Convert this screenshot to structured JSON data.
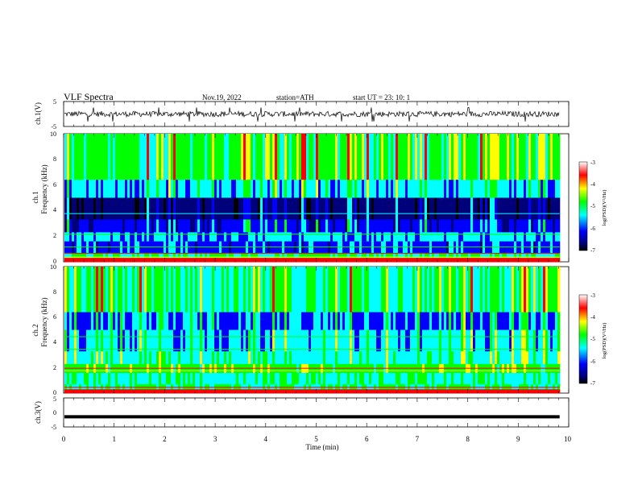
{
  "header": {
    "title": "VLF  Spectra",
    "date": "Nov.19, 2022",
    "station": "station=ATH",
    "start": "start  UT  =    23: 10: 1"
  },
  "chart_data": {
    "type": "heatmap",
    "panels": [
      {
        "id": "ch1-waveform",
        "kind": "line",
        "ylabel": "ch.1(V)",
        "ylim": [
          -5,
          5
        ],
        "yticks": [
          "5",
          "-5"
        ]
      },
      {
        "id": "ch1-spectrogram",
        "kind": "heatmap",
        "ylabel_line1": "ch.1",
        "ylabel_line2": "Frequency  (kHz)",
        "ylim": [
          0,
          10
        ],
        "yticks": [
          "0",
          "2",
          "4",
          "6",
          "8",
          "10"
        ]
      },
      {
        "id": "ch2-spectrogram",
        "kind": "heatmap",
        "ylabel_line1": "ch.2",
        "ylabel_line2": "Frequency  (kHz)",
        "ylim": [
          0,
          10
        ],
        "yticks": [
          "0",
          "2",
          "4",
          "6",
          "8",
          "10"
        ]
      },
      {
        "id": "ch3-waveform",
        "kind": "line",
        "ylabel": "ch.3(V)",
        "ylim": [
          -5,
          5
        ],
        "yticks": [
          "5",
          "0",
          "-5"
        ],
        "level": -1.5
      }
    ],
    "x": {
      "label": "Time  (min)",
      "range": [
        0,
        10
      ],
      "ticks": [
        "0",
        "1",
        "2",
        "3",
        "4",
        "5",
        "6",
        "7",
        "8",
        "9",
        "10"
      ],
      "data_end": 9.82
    },
    "colorbar": {
      "label": "log(PSD)(V²/Hz)",
      "range": [
        -7,
        -3
      ],
      "ticks": [
        "-3",
        "-4",
        "-5",
        "-6",
        "-7"
      ]
    },
    "colormap": [
      "#000000",
      "#00007a",
      "#0000ff",
      "#00ffff",
      "#00ff00",
      "#ffff00",
      "#ff0000",
      "#ffffff"
    ]
  }
}
